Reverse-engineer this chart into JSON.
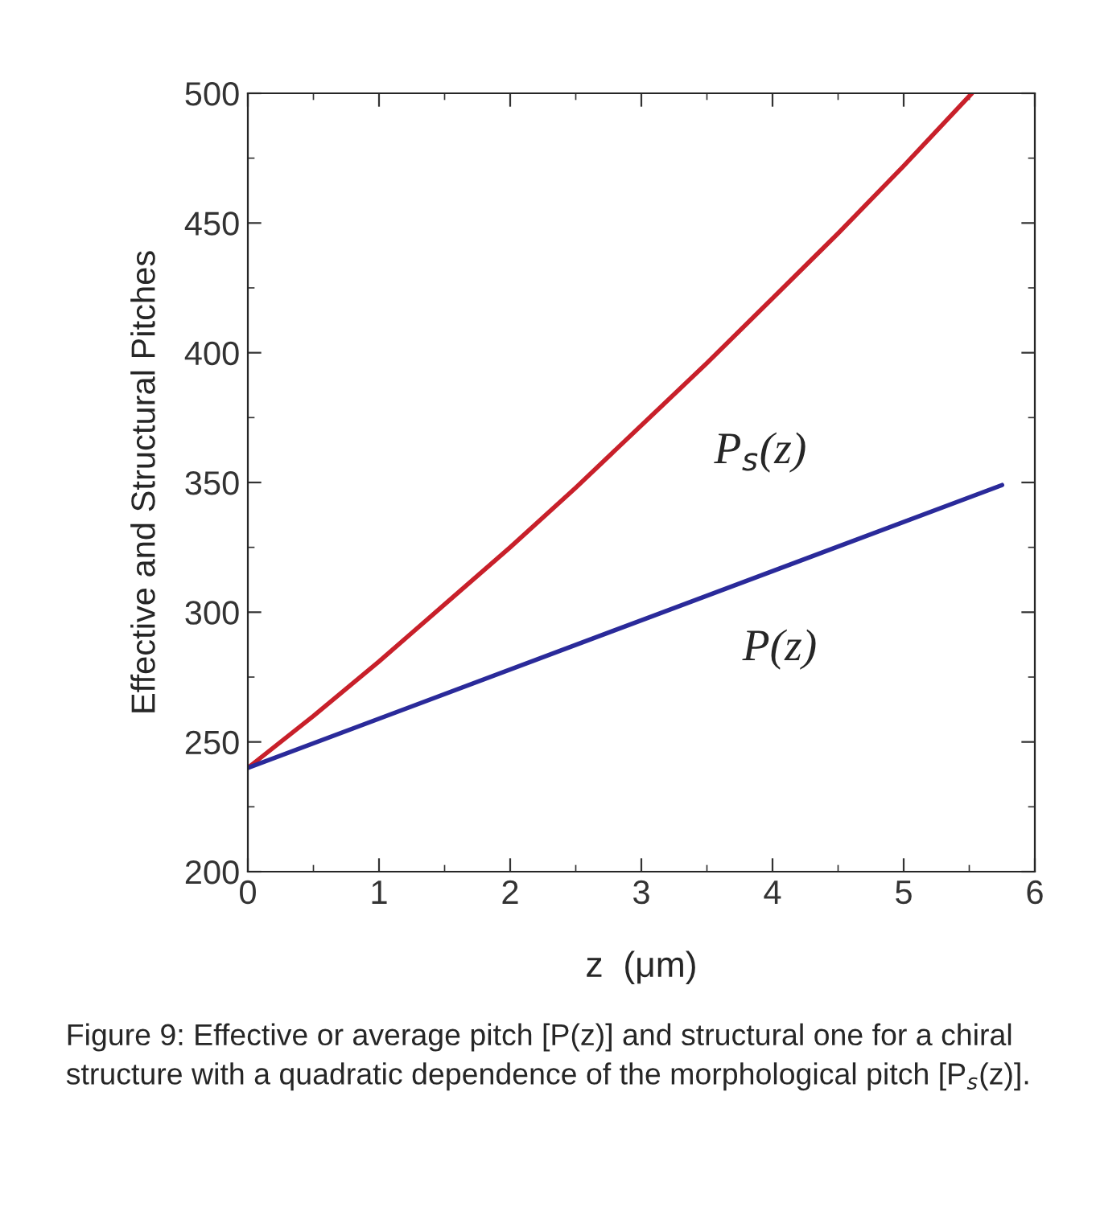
{
  "chart_data": {
    "type": "line",
    "xlabel": "z  (μm)",
    "ylabel": "Effective and Structural Pitches",
    "xlim": [
      0,
      6
    ],
    "xticks": [
      0,
      1,
      2,
      3,
      4,
      5,
      6
    ],
    "ylim": [
      200,
      500
    ],
    "yticks": [
      200,
      250,
      300,
      350,
      400,
      450,
      500
    ],
    "grid": false,
    "legend": false,
    "marker": "none",
    "line_style": "solid",
    "series": [
      {
        "name": "P$_{s}$(z)",
        "color": "#c8202a",
        "x": [
          0,
          0.5,
          1,
          1.5,
          2,
          2.5,
          3,
          3.5,
          4,
          4.5,
          5,
          5.52
        ],
        "values": [
          240,
          260,
          281,
          303,
          325,
          348,
          372,
          396,
          421,
          446,
          472,
          500
        ]
      },
      {
        "name": "P(z)",
        "color": "#2a2a9a",
        "x": [
          0,
          5.75
        ],
        "values": [
          240,
          349
        ]
      }
    ],
    "annotations": [
      "Figure 9: Effective or average pitch [P(z)] and structural one for a chiral structure with a quadratic dependence of the morphological pitch [P$_{s}$(z)]."
    ]
  }
}
